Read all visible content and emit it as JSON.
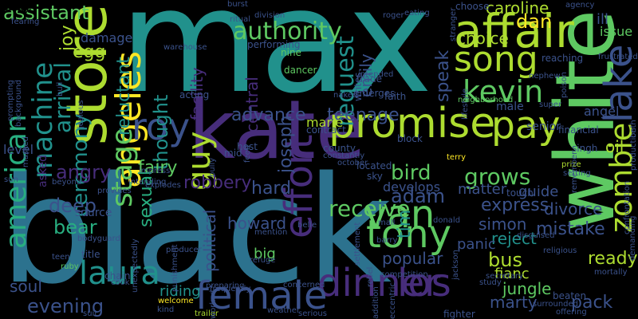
{
  "background": "#000000",
  "palette": {
    "purple_dark": "#440154",
    "purple": "#472d7b",
    "indigo": "#3b528b",
    "blue": "#2c728e",
    "teal": "#21918c",
    "green_teal": "#28ae80",
    "green": "#5ec962",
    "lime": "#addc30",
    "yellow": "#fde725"
  },
  "words": [
    {
      "text": "black",
      "color": "#2c728e"
    },
    {
      "text": "max",
      "color": "#21918c"
    },
    {
      "text": "kate",
      "color": "#472d7b"
    },
    {
      "text": "white",
      "color": "#5ec962"
    },
    {
      "text": "affair",
      "color": "#addc30"
    },
    {
      "text": "store",
      "color": "#addc30"
    },
    {
      "text": "promise",
      "color": "#addc30"
    },
    {
      "text": "pay",
      "color": "#addc30"
    },
    {
      "text": "song",
      "color": "#addc30"
    },
    {
      "text": "lake",
      "color": "#3b528b"
    },
    {
      "text": "angeles",
      "color": "#fde725"
    },
    {
      "text": "roy",
      "color": "#3b528b"
    },
    {
      "text": "tony",
      "color": "#5ec962"
    },
    {
      "text": "van",
      "color": "#5ec962"
    },
    {
      "text": "zombie",
      "color": "#addc30"
    },
    {
      "text": "guy",
      "color": "#addc30"
    },
    {
      "text": "kevin",
      "color": "#5ec962"
    },
    {
      "text": "dinner",
      "color": "#472d7b"
    },
    {
      "text": "los",
      "color": "#472d7b"
    },
    {
      "text": "female",
      "color": "#3b528b"
    },
    {
      "text": "effort",
      "color": "#472d7b"
    },
    {
      "text": "stage",
      "color": "#5ec962"
    },
    {
      "text": "laura",
      "color": "#21918c"
    },
    {
      "text": "american",
      "color": "#28ae80"
    },
    {
      "text": "machine",
      "color": "#21918c"
    },
    {
      "text": "assistant",
      "color": "#5ec962"
    },
    {
      "text": "authority",
      "color": "#5ec962"
    },
    {
      "text": "request",
      "color": "#21918c"
    },
    {
      "text": "arrival",
      "color": "#21918c"
    },
    {
      "text": "ceremony",
      "color": "#21918c"
    },
    {
      "text": "reluctant",
      "color": "#21918c"
    },
    {
      "text": "thought",
      "color": "#21918c"
    },
    {
      "text": "facility",
      "color": "#472d7b"
    },
    {
      "text": "central",
      "color": "#472d7b"
    },
    {
      "text": "joseph",
      "color": "#3b528b"
    },
    {
      "text": "advance",
      "color": "#3b528b"
    },
    {
      "text": "teenage",
      "color": "#3b528b"
    },
    {
      "text": "bird",
      "color": "#5ec962"
    },
    {
      "text": "adam",
      "color": "#3b528b"
    },
    {
      "text": "receive",
      "color": "#5ec962"
    },
    {
      "text": "tim",
      "color": "#21918c"
    },
    {
      "text": "grows",
      "color": "#5ec962"
    },
    {
      "text": "express",
      "color": "#3b528b"
    },
    {
      "text": "oil",
      "color": "#addc30"
    },
    {
      "text": "dan",
      "color": "#fde725"
    },
    {
      "text": "caroline",
      "color": "#addc30"
    },
    {
      "text": "choice",
      "color": "#addc30"
    },
    {
      "text": "speak",
      "color": "#3b528b"
    },
    {
      "text": "emily",
      "color": "#3b528b"
    },
    {
      "text": "egg",
      "color": "#addc30"
    },
    {
      "text": "joy",
      "color": "#addc30"
    },
    {
      "text": "angry",
      "color": "#472d7b"
    },
    {
      "text": "fairy",
      "color": "#5ec962"
    },
    {
      "text": "robbery",
      "color": "#472d7b"
    },
    {
      "text": "hard",
      "color": "#3b528b"
    },
    {
      "text": "sexual",
      "color": "#28ae80"
    },
    {
      "text": "deep",
      "color": "#3b528b"
    },
    {
      "text": "bear",
      "color": "#28ae80"
    },
    {
      "text": "howard",
      "color": "#3b528b"
    },
    {
      "text": "political",
      "color": "#3b528b"
    },
    {
      "text": "big",
      "color": "#5ec962"
    },
    {
      "text": "popular",
      "color": "#3b528b"
    },
    {
      "text": "simon",
      "color": "#3b528b"
    },
    {
      "text": "reject",
      "color": "#21918c"
    },
    {
      "text": "bus",
      "color": "#addc30"
    },
    {
      "text": "fianc",
      "color": "#addc30"
    },
    {
      "text": "jungle",
      "color": "#5ec962"
    },
    {
      "text": "marty",
      "color": "#3b528b"
    },
    {
      "text": "mistake",
      "color": "#3b528b"
    },
    {
      "text": "ready",
      "color": "#addc30"
    },
    {
      "text": "pack",
      "color": "#3b528b"
    },
    {
      "text": "evening",
      "color": "#3b528b"
    },
    {
      "text": "soul",
      "color": "#3b528b"
    },
    {
      "text": "riding",
      "color": "#21918c"
    },
    {
      "text": "level",
      "color": "#3b528b"
    },
    {
      "text": "marie",
      "color": "#addc30"
    },
    {
      "text": "panic",
      "color": "#3b528b"
    },
    {
      "text": "matter",
      "color": "#3b528b"
    },
    {
      "text": "guide",
      "color": "#3b528b"
    },
    {
      "text": "divorce",
      "color": "#3b528b"
    },
    {
      "text": "ill",
      "color": "#3b528b"
    },
    {
      "text": "issue",
      "color": "#5ec962"
    },
    {
      "text": "angel",
      "color": "#3b528b"
    },
    {
      "text": "male",
      "color": "#3b528b"
    },
    {
      "text": "senior",
      "color": "#3b528b"
    },
    {
      "text": "develops",
      "color": "#3b528b"
    },
    {
      "text": "damage",
      "color": "#3b528b"
    },
    {
      "text": "source",
      "color": "#3b528b"
    },
    {
      "text": "asked",
      "color": "#472d7b"
    },
    {
      "text": "dancer",
      "color": "#5ec962"
    },
    {
      "text": "nine",
      "color": "#5ec962"
    },
    {
      "text": "emerges",
      "color": "#3b528b"
    },
    {
      "text": "trade",
      "color": "#3b528b"
    },
    {
      "text": "writes",
      "color": "#3b528b"
    },
    {
      "text": "faith",
      "color": "#3b528b"
    },
    {
      "text": "acting",
      "color": "#3b528b"
    },
    {
      "text": "county",
      "color": "#3b528b"
    },
    {
      "text": "host",
      "color": "#3b528b"
    },
    {
      "text": "sky",
      "color": "#3b528b"
    },
    {
      "text": "located",
      "color": "#3b528b"
    },
    {
      "text": "contract",
      "color": "#3b528b"
    },
    {
      "text": "naked",
      "color": "#3b528b"
    },
    {
      "text": "financial",
      "color": "#3b528b"
    },
    {
      "text": "singh",
      "color": "#3b528b"
    },
    {
      "text": "touch",
      "color": "#3b528b"
    },
    {
      "text": "prize",
      "color": "#addc30"
    },
    {
      "text": "setting",
      "color": "#3b528b"
    },
    {
      "text": "terry",
      "color": "#fde725"
    },
    {
      "text": "block",
      "color": "#3b528b"
    },
    {
      "text": "mall",
      "color": "#3b528b"
    },
    {
      "text": "barry",
      "color": "#3b528b"
    },
    {
      "text": "settlement",
      "color": "#3b528b"
    },
    {
      "text": "belle",
      "color": "#3b528b"
    },
    {
      "text": "mention",
      "color": "#3b528b"
    },
    {
      "text": "refuge",
      "color": "#3b528b"
    },
    {
      "text": "producer",
      "color": "#3b528b"
    },
    {
      "text": "chain",
      "color": "#3b528b"
    },
    {
      "text": "title",
      "color": "#3b528b"
    },
    {
      "text": "teen",
      "color": "#3b528b"
    },
    {
      "text": "ruby",
      "color": "#5ec962"
    },
    {
      "text": "cook",
      "color": "#3b528b"
    },
    {
      "text": "welcome",
      "color": "#fde725"
    },
    {
      "text": "kind",
      "color": "#3b528b"
    },
    {
      "text": "preparing",
      "color": "#3b528b"
    },
    {
      "text": "concerned",
      "color": "#3b528b"
    },
    {
      "text": "rebel",
      "color": "#3b528b"
    },
    {
      "text": "donald",
      "color": "#3b528b"
    },
    {
      "text": "jackson",
      "color": "#3b528b"
    },
    {
      "text": "study",
      "color": "#3b528b"
    },
    {
      "text": "beaten",
      "color": "#3b528b"
    },
    {
      "text": "fighter",
      "color": "#3b528b"
    },
    {
      "text": "offering",
      "color": "#3b528b"
    },
    {
      "text": "suit",
      "color": "#3b528b"
    },
    {
      "text": "trailer",
      "color": "#addc30"
    },
    {
      "text": "weather",
      "color": "#3b528b"
    },
    {
      "text": "serious",
      "color": "#3b528b"
    },
    {
      "text": "addition",
      "color": "#3b528b"
    },
    {
      "text": "eccentric",
      "color": "#3b528b"
    },
    {
      "text": "burst",
      "color": "#3b528b"
    },
    {
      "text": "division",
      "color": "#3b528b"
    },
    {
      "text": "ritual",
      "color": "#3b528b"
    },
    {
      "text": "performing",
      "color": "#3b528b"
    },
    {
      "text": "roger",
      "color": "#3b528b"
    },
    {
      "text": "eating",
      "color": "#3b528b"
    },
    {
      "text": "choose",
      "color": "#3b528b"
    },
    {
      "text": "stranger",
      "color": "#3b528b"
    },
    {
      "text": "agency",
      "color": "#3b528b"
    },
    {
      "text": "frustrated",
      "color": "#3b528b"
    },
    {
      "text": "reaching",
      "color": "#3b528b"
    },
    {
      "text": "nephew",
      "color": "#3b528b"
    },
    {
      "text": "lifestyle",
      "color": "#3b528b"
    },
    {
      "text": "neighborhood",
      "color": "#5ec962"
    },
    {
      "text": "poison",
      "color": "#3b528b"
    },
    {
      "text": "production",
      "color": "#3b528b"
    },
    {
      "text": "remember",
      "color": "#3b528b"
    },
    {
      "text": "confrontation",
      "color": "#3b528b"
    },
    {
      "text": "demanding",
      "color": "#3b528b"
    },
    {
      "text": "religious",
      "color": "#3b528b"
    },
    {
      "text": "secretary",
      "color": "#3b528b"
    },
    {
      "text": "surrounded",
      "color": "#3b528b"
    },
    {
      "text": "mortally",
      "color": "#3b528b"
    },
    {
      "text": "disguised",
      "color": "#3b528b"
    },
    {
      "text": "constantly",
      "color": "#3b528b"
    },
    {
      "text": "october",
      "color": "#3b528b"
    },
    {
      "text": "feed",
      "color": "#3b528b"
    },
    {
      "text": "bully",
      "color": "#3b528b"
    },
    {
      "text": "impress",
      "color": "#3b528b"
    },
    {
      "text": "explodes",
      "color": "#3b528b"
    },
    {
      "text": "provides",
      "color": "#3b528b"
    },
    {
      "text": "beyond",
      "color": "#3b528b"
    },
    {
      "text": "sun",
      "color": "#3b528b"
    },
    {
      "text": "masked",
      "color": "#3b528b"
    },
    {
      "text": "jealous",
      "color": "#3b528b"
    },
    {
      "text": "bull",
      "color": "#3b528b"
    },
    {
      "text": "bodyguard",
      "color": "#3b528b"
    },
    {
      "text": "unexpectedly",
      "color": "#3b528b"
    },
    {
      "text": "punishment",
      "color": "#3b528b"
    },
    {
      "text": "frequently",
      "color": "#3b528b"
    },
    {
      "text": "competition",
      "color": "#3b528b"
    },
    {
      "text": "prompting",
      "color": "#3b528b"
    },
    {
      "text": "background",
      "color": "#3b528b"
    },
    {
      "text": "fearing",
      "color": "#3b528b"
    },
    {
      "text": "warehouse",
      "color": "#3b528b"
    },
    {
      "text": "intended",
      "color": "#3b528b"
    },
    {
      "text": "intending",
      "color": "#3b528b"
    },
    {
      "text": "worked",
      "color": "#3b528b"
    },
    {
      "text": "beth",
      "color": "#3b528b"
    },
    {
      "text": "super",
      "color": "#3b528b"
    },
    {
      "text": "mid",
      "color": "#3b528b"
    },
    {
      "text": "drag",
      "color": "#3b528b"
    },
    {
      "text": "rain",
      "color": "#3b528b"
    },
    {
      "text": "edge",
      "color": "#3b528b"
    },
    {
      "text": "r",
      "color": "#3b528b"
    }
  ]
}
